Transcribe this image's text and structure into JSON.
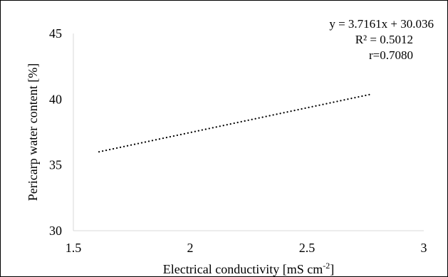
{
  "chart_data": {
    "type": "line",
    "xlabel": "Electrical conductivity [mS cm",
    "xlabel_superscript": "-2",
    "xlabel_suffix": "]",
    "ylabel": "Pericarp water content [%]",
    "xlim": [
      1.5,
      3
    ],
    "ylim": [
      30,
      45
    ],
    "x_ticks": [
      "1.5",
      "2",
      "2.5",
      "3"
    ],
    "y_ticks": [
      "30",
      "35",
      "40",
      "45"
    ],
    "grid": false,
    "legend": "none",
    "series": [
      {
        "style": "dotted",
        "x": [
          1.61,
          2.78
        ],
        "y": [
          36.0,
          40.4
        ]
      }
    ],
    "annotations": [
      "y = 3.7161x + 30.036",
      "R² = 0.5012",
      "r=0.7080"
    ]
  }
}
